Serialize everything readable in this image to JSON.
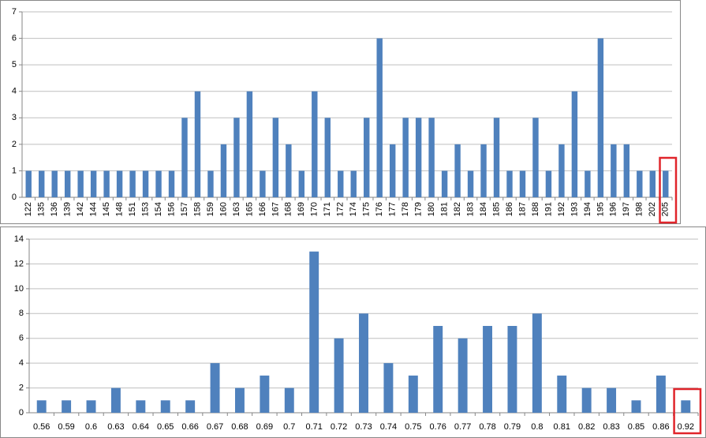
{
  "chart_data": [
    {
      "type": "bar",
      "color": "#4f81bd",
      "grid": true,
      "categories": [
        "122",
        "135",
        "136",
        "139",
        "142",
        "144",
        "145",
        "148",
        "151",
        "153",
        "154",
        "156",
        "157",
        "158",
        "159",
        "160",
        "163",
        "165",
        "166",
        "167",
        "168",
        "169",
        "170",
        "171",
        "172",
        "174",
        "175",
        "176",
        "177",
        "178",
        "179",
        "180",
        "181",
        "182",
        "183",
        "184",
        "185",
        "186",
        "187",
        "188",
        "191",
        "192",
        "193",
        "194",
        "195",
        "196",
        "197",
        "198",
        "202",
        "205"
      ],
      "values": [
        1,
        1,
        1,
        1,
        1,
        1,
        1,
        1,
        1,
        1,
        1,
        1,
        3,
        4,
        1,
        2,
        3,
        4,
        1,
        3,
        2,
        1,
        4,
        3,
        1,
        1,
        3,
        6,
        2,
        3,
        3,
        3,
        1,
        2,
        1,
        2,
        3,
        1,
        1,
        3,
        1,
        2,
        4,
        1,
        6,
        2,
        2,
        1,
        1,
        1
      ],
      "ylim": [
        0,
        7
      ],
      "yticks": [
        0,
        1,
        2,
        3,
        4,
        5,
        6,
        7
      ]
    },
    {
      "type": "bar",
      "color": "#4f81bd",
      "grid": true,
      "categories": [
        "0.56",
        "0.59",
        "0.6",
        "0.63",
        "0.64",
        "0.65",
        "0.66",
        "0.67",
        "0.68",
        "0.69",
        "0.7",
        "0.71",
        "0.72",
        "0.73",
        "0.74",
        "0.75",
        "0.76",
        "0.77",
        "0.78",
        "0.79",
        "0.8",
        "0.81",
        "0.82",
        "0.83",
        "0.85",
        "0.86",
        "0.92"
      ],
      "values": [
        1,
        1,
        1,
        2,
        1,
        1,
        1,
        4,
        2,
        3,
        2,
        13,
        6,
        8,
        4,
        3,
        7,
        6,
        7,
        7,
        8,
        3,
        2,
        2,
        1,
        3,
        1
      ],
      "ylim": [
        0,
        14
      ],
      "yticks": [
        0,
        2,
        4,
        6,
        8,
        10,
        12,
        14
      ]
    }
  ]
}
